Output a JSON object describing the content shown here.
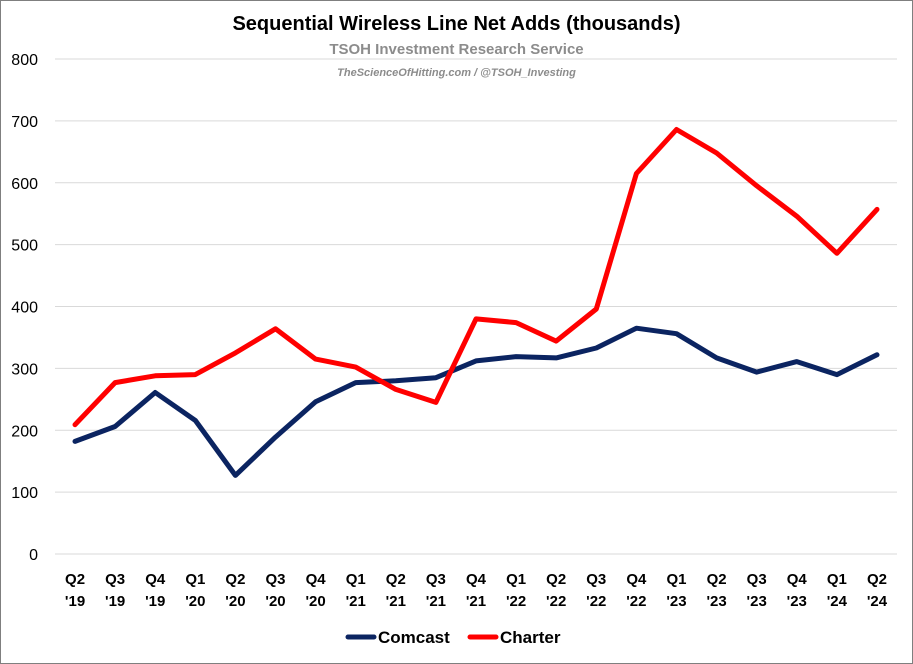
{
  "chart_data": {
    "type": "line",
    "title": "Sequential Wireless Line Net Adds (thousands)",
    "subtitle": "TSOH Investment Research Service",
    "credit": "TheScienceOfHitting.com / @TSOH_Investing",
    "categories": [
      [
        "Q2",
        "'19"
      ],
      [
        "Q3",
        "'19"
      ],
      [
        "Q4",
        "'19"
      ],
      [
        "Q1",
        "'20"
      ],
      [
        "Q2",
        "'20"
      ],
      [
        "Q3",
        "'20"
      ],
      [
        "Q4",
        "'20"
      ],
      [
        "Q1",
        "'21"
      ],
      [
        "Q2",
        "'21"
      ],
      [
        "Q3",
        "'21"
      ],
      [
        "Q4",
        "'21"
      ],
      [
        "Q1",
        "'22"
      ],
      [
        "Q2",
        "'22"
      ],
      [
        "Q3",
        "'22"
      ],
      [
        "Q4",
        "'22"
      ],
      [
        "Q1",
        "'23"
      ],
      [
        "Q2",
        "'23"
      ],
      [
        "Q3",
        "'23"
      ],
      [
        "Q4",
        "'23"
      ],
      [
        "Q1",
        "'24"
      ],
      [
        "Q2",
        "'24"
      ]
    ],
    "ylim": [
      0,
      800
    ],
    "yticks": [
      0,
      100,
      200,
      300,
      400,
      500,
      600,
      700,
      800
    ],
    "grid": true,
    "legend_position": "bottom",
    "series": [
      {
        "name": "Comcast",
        "color": "#0b2461",
        "values": [
          182,
          206,
          261,
          216,
          127,
          189,
          246,
          277,
          280,
          285,
          312,
          319,
          317,
          333,
          365,
          356,
          317,
          294,
          311,
          290,
          322
        ]
      },
      {
        "name": "Charter",
        "color": "#ff0000",
        "values": [
          209,
          277,
          288,
          290,
          325,
          364,
          315,
          302,
          266,
          245,
          380,
          374,
          344,
          396,
          615,
          686,
          648,
          595,
          546,
          486,
          557
        ]
      }
    ]
  }
}
